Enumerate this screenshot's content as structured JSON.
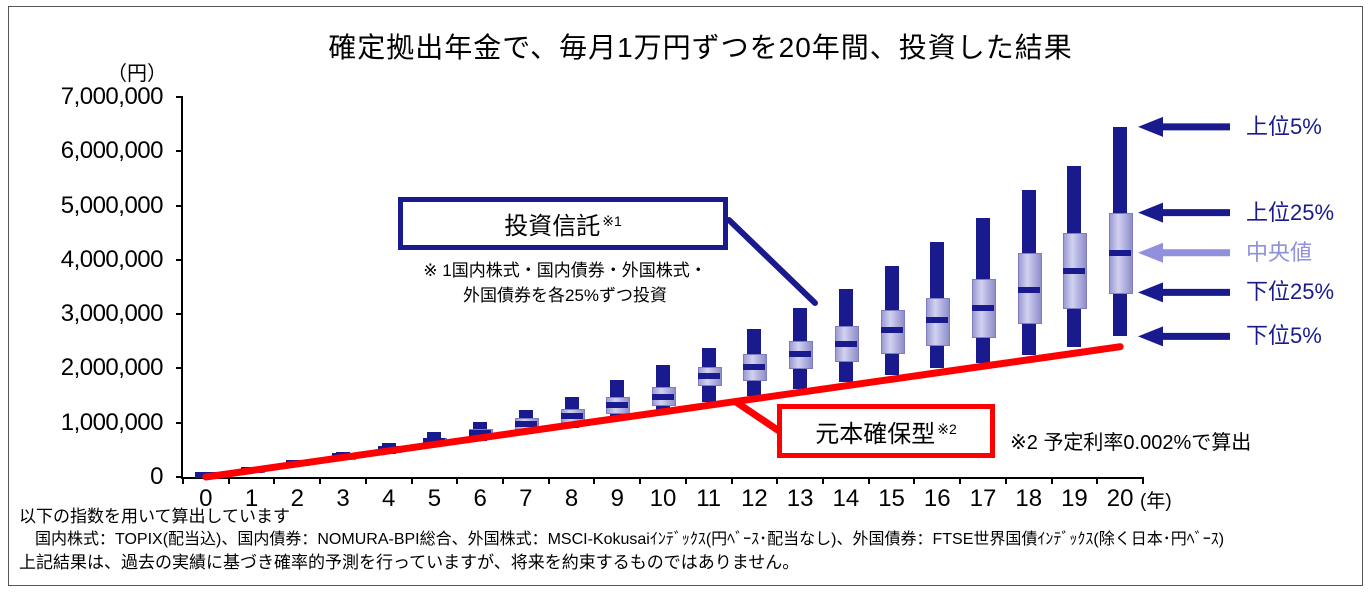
{
  "title": "確定拠出年金で、毎月1万円ずつを20年間、投資した結果",
  "y_axis": {
    "unit_label": "（円）"
  },
  "x_axis": {
    "unit_label": "(年)"
  },
  "legend": [
    {
      "label": "上位5%",
      "percentile": "p95",
      "color": "#1a1a8f"
    },
    {
      "label": "上位25%",
      "percentile": "p75",
      "color": "#1a1a8f"
    },
    {
      "label": "中央値",
      "percentile": "median",
      "color": "#9090dc"
    },
    {
      "label": "下位25%",
      "percentile": "p25",
      "color": "#1a1a8f"
    },
    {
      "label": "下位5%",
      "percentile": "p5",
      "color": "#1a1a8f"
    }
  ],
  "annotations": {
    "investment_trust": {
      "box_label": "投資信託",
      "sup": "※1",
      "note_line1": "※ 1国内株式・国内債券・外国株式・",
      "note_line2": "外国債券を各25%ずつ投資"
    },
    "principal_guaranteed": {
      "box_label": "元本確保型",
      "sup": "※2",
      "note": "※2 予定利率0.002%で算出"
    }
  },
  "footer": {
    "line1": "以下の指数を用いて算出しています",
    "line2": "　国内株式：TOPIX(配当込)、国内債券：NOMURA-BPI総合、外国株式：MSCI-Kokusaiｲﾝﾃﾞｯｸｽ(円ﾍﾞｰｽ･配当なし)、外国債券：FTSE世界国債ｲﾝﾃﾞｯｸｽ(除く日本･円ﾍﾞｰｽ)",
    "line3": "上記結果は、過去の実績に基づき確率的予測を行っていますが、将来を約束するものではありません。"
  },
  "colors": {
    "navy": "#1a1a8f",
    "periwinkle": "#9090dc",
    "red": "#ff0000",
    "axis": "#000000"
  },
  "chart_data": {
    "type": "boxplot",
    "title": "確定拠出年金で、毎月1万円ずつを20年間、投資した結果",
    "x": [
      0,
      1,
      2,
      3,
      4,
      5,
      6,
      7,
      8,
      9,
      10,
      11,
      12,
      13,
      14,
      15,
      16,
      17,
      18,
      19,
      20
    ],
    "x_unit": "年",
    "y_unit": "円",
    "ylim": [
      0,
      7000000
    ],
    "y_ticks": [
      0,
      1000000,
      2000000,
      3000000,
      4000000,
      5000000,
      6000000,
      7000000
    ],
    "legend_position": "right",
    "series": [
      {
        "name": "投資信託（国内株式・国内債券・外国株式・外国債券を各25%ずつ投資）",
        "type": "boxplot",
        "p95": [
          70000,
          160000,
          310000,
          465000,
          635000,
          820000,
          1010000,
          1240000,
          1480000,
          1790000,
          2070000,
          2380000,
          2720000,
          3110000,
          3470000,
          3880000,
          4320000,
          4780000,
          5290000,
          5730000,
          6450000
        ],
        "p75": [
          50000,
          140000,
          275000,
          415000,
          560000,
          725000,
          890000,
          1080000,
          1250000,
          1480000,
          1660000,
          2020000,
          2260000,
          2500000,
          2780000,
          3070000,
          3300000,
          3640000,
          4130000,
          4500000,
          4870000
        ],
        "median": [
          35000,
          125000,
          255000,
          385000,
          515000,
          660000,
          815000,
          980000,
          1120000,
          1330000,
          1480000,
          1860000,
          2020000,
          2260000,
          2450000,
          2700000,
          2900000,
          3120000,
          3450000,
          3790000,
          4130000
        ],
        "p25": [
          20000,
          115000,
          235000,
          355000,
          480000,
          615000,
          750000,
          900000,
          1030000,
          1190000,
          1340000,
          1710000,
          1800000,
          2020000,
          2150000,
          2300000,
          2450000,
          2600000,
          2850000,
          3140000,
          3400000
        ],
        "p5": [
          10000,
          100000,
          210000,
          320000,
          430000,
          550000,
          670000,
          800000,
          910000,
          1040000,
          1180000,
          1380000,
          1490000,
          1620000,
          1750000,
          1870000,
          2000000,
          2100000,
          2250000,
          2400000,
          2590000
        ]
      },
      {
        "name": "元本確保型（予定利率0.002%で算出）",
        "type": "line",
        "color": "#ff0000",
        "values": [
          0,
          120000,
          240000,
          360000,
          480000,
          600000,
          720000,
          840000,
          960000,
          1080000,
          1200000,
          1320000,
          1440000,
          1560000,
          1680000,
          1800000,
          1920000,
          2040000,
          2160000,
          2280000,
          2400000
        ]
      }
    ]
  }
}
